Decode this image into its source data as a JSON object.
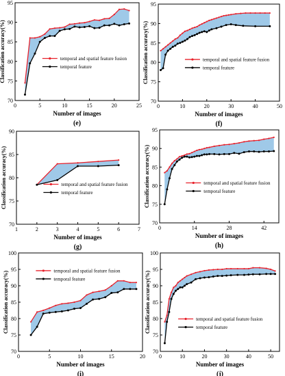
{
  "figure": {
    "colors": {
      "fusion": "#e8202a",
      "temporal": "#000000",
      "fill": "#9fc9e8",
      "axis": "#000000"
    }
  },
  "chart_data": [
    {
      "type": "line",
      "panel_label": "(e)",
      "xlabel": "Number of images",
      "ylabel": "Classification accuracy(%)",
      "xlim": [
        0,
        25
      ],
      "ylim": [
        70,
        95
      ],
      "xticks": [
        0,
        5,
        10,
        15,
        20,
        25
      ],
      "yticks": [
        70,
        75,
        80,
        85,
        90,
        95
      ],
      "legend": "center-right",
      "series": [
        {
          "name": "temporal and spatial feature fusion",
          "x": [
            2,
            3,
            4,
            5,
            6,
            7,
            8,
            9,
            10,
            11,
            12,
            13,
            14,
            15,
            16,
            17,
            18,
            19,
            20,
            21,
            22,
            23
          ],
          "y": [
            74.5,
            86,
            86,
            86.3,
            87,
            88.3,
            88.5,
            88.6,
            88.8,
            89.5,
            89.6,
            89.8,
            89.9,
            90.2,
            90.6,
            90.5,
            90.9,
            91,
            92,
            93.3,
            93.4,
            93.0
          ]
        },
        {
          "name": "temporal feature",
          "x": [
            2,
            3,
            4,
            5,
            6,
            7,
            8,
            9,
            10,
            11,
            12,
            13,
            14,
            15,
            16,
            17,
            18,
            19,
            20,
            21,
            22,
            23
          ],
          "y": [
            71.5,
            79.5,
            82,
            85,
            86,
            86.5,
            86.5,
            87.8,
            88.2,
            88.3,
            88.9,
            88.7,
            88.8,
            89.0,
            88.5,
            88.6,
            89.2,
            89.2,
            89.6,
            89.2,
            89.5,
            89.7
          ]
        }
      ]
    },
    {
      "type": "line",
      "panel_label": "(f)",
      "xlabel": "Number of images",
      "ylabel": "Classification accuracy(%)",
      "xlim": [
        0,
        50
      ],
      "ylim": [
        70,
        95
      ],
      "xticks": [
        0,
        10,
        20,
        30,
        40,
        50
      ],
      "yticks": [
        70,
        75,
        80,
        85,
        90,
        95
      ],
      "legend": "center-right",
      "series": [
        {
          "name": "temporal and spatial feature fusion",
          "x": [
            1,
            2,
            3,
            4,
            5,
            6,
            7,
            8,
            9,
            10,
            11,
            12,
            13,
            14,
            15,
            16,
            17,
            18,
            19,
            20,
            21,
            22,
            23,
            24,
            25,
            26,
            27,
            28,
            29,
            30,
            32,
            34,
            36,
            38,
            40,
            42,
            44,
            46
          ],
          "y": [
            83,
            83.5,
            84,
            84.5,
            85,
            85.5,
            86,
            86.3,
            87,
            87.5,
            88,
            88.2,
            88.5,
            88.8,
            89,
            89.2,
            89.6,
            89.9,
            90.2,
            90.5,
            90.8,
            91,
            91.2,
            91.4,
            91.6,
            91.8,
            92,
            92.1,
            92.2,
            92.3,
            92.5,
            92.6,
            92.7,
            92.7,
            92.7,
            92.7,
            92.7,
            92.7
          ]
        },
        {
          "name": "temporal feature",
          "x": [
            1,
            2,
            3,
            4,
            5,
            6,
            7,
            8,
            9,
            10,
            11,
            12,
            13,
            14,
            15,
            16,
            17,
            18,
            19,
            20,
            21,
            22,
            24,
            26,
            28,
            30,
            32,
            35,
            40,
            46
          ],
          "y": [
            78,
            78.5,
            82,
            83,
            83.5,
            84,
            84.3,
            84.8,
            85,
            85.3,
            85.6,
            86,
            86.5,
            86.8,
            87,
            87.3,
            87.6,
            87.8,
            88,
            87.8,
            88.2,
            88.5,
            88.8,
            89.2,
            89.6,
            89.8,
            89.6,
            89.4,
            89.3,
            89.3
          ]
        }
      ]
    },
    {
      "type": "line",
      "panel_label": "(g)",
      "xlabel": "Number of images",
      "ylabel": "Classification accuracy(%)",
      "xlim": [
        1,
        7
      ],
      "ylim": [
        70,
        90
      ],
      "xticks": [
        1,
        2,
        3,
        4,
        5,
        6,
        7
      ],
      "yticks": [
        70,
        75,
        80,
        85,
        90
      ],
      "legend": "center-right",
      "series": [
        {
          "name": "temporal and spatial feature fusion",
          "x": [
            2,
            3,
            4,
            5,
            6
          ],
          "y": [
            78.5,
            83,
            83.2,
            83.5,
            83.8
          ]
        },
        {
          "name": "temporal feature",
          "x": [
            2,
            3,
            4,
            5,
            6
          ],
          "y": [
            78.5,
            79.5,
            82.5,
            82.5,
            82.7
          ]
        }
      ]
    },
    {
      "type": "line",
      "panel_label": "(h)",
      "xlabel": "Number of images",
      "ylabel": "Classification accuracy(%)",
      "xlim": [
        0,
        48
      ],
      "ylim": [
        70,
        95
      ],
      "xticks": [
        0,
        14,
        28,
        42
      ],
      "yticks": [
        70,
        75,
        80,
        85,
        90,
        95
      ],
      "legend": "center-right",
      "series": [
        {
          "name": "temporal and spatial feature fusion",
          "x": [
            2,
            3,
            4,
            5,
            6,
            7,
            8,
            9,
            10,
            11,
            12,
            13,
            14,
            15,
            16,
            17,
            18,
            19,
            20,
            22,
            24,
            26,
            28,
            30,
            32,
            34,
            36,
            38,
            40,
            42,
            44,
            46
          ],
          "y": [
            83.5,
            84,
            85,
            86,
            86.7,
            87.2,
            87.8,
            88,
            88.2,
            88.5,
            88.6,
            88.9,
            89.2,
            89.5,
            89.7,
            89.8,
            90,
            90.2,
            90.3,
            90.6,
            90.8,
            91,
            91.1,
            91.3,
            91.5,
            91.8,
            92,
            92.1,
            92.2,
            92.5,
            92.7,
            93.0
          ]
        },
        {
          "name": "temporal feature",
          "x": [
            2,
            3,
            4,
            5,
            6,
            7,
            8,
            9,
            10,
            11,
            12,
            13,
            14,
            15,
            16,
            17,
            18,
            19,
            20,
            22,
            24,
            26,
            28,
            30,
            32,
            34,
            36,
            38,
            40,
            42,
            44,
            46
          ],
          "y": [
            75,
            79,
            82,
            84.5,
            85.5,
            86.5,
            87,
            87.5,
            87.8,
            87.8,
            87.6,
            87.7,
            87.8,
            88,
            88,
            88.2,
            88.4,
            88.4,
            88.5,
            88.5,
            88.4,
            88.5,
            88.5,
            88.8,
            88.6,
            89,
            89.2,
            89.2,
            89.1,
            89.2,
            89.2,
            89.3
          ]
        }
      ]
    },
    {
      "type": "line",
      "panel_label": "(i)",
      "xlabel": "Number of images",
      "ylabel": "Classification accuracy(%)",
      "xlim": [
        0,
        20
      ],
      "ylim": [
        70,
        100
      ],
      "xticks": [
        0,
        5,
        10,
        15,
        20
      ],
      "yticks": [
        70,
        75,
        80,
        85,
        90,
        95,
        100
      ],
      "legend": "top-left",
      "series": [
        {
          "name": "temporal and spatial feature fusion",
          "x": [
            2,
            3,
            4,
            5,
            6,
            7,
            8,
            9,
            10,
            11,
            12,
            13,
            14,
            15,
            16,
            17,
            18,
            19
          ],
          "y": [
            79,
            82,
            82.5,
            83.2,
            84,
            84.5,
            84.7,
            85,
            85.5,
            87.2,
            88,
            88.3,
            88.7,
            90,
            91.5,
            91.5,
            91,
            91
          ]
        },
        {
          "name": "temporal feature",
          "x": [
            2,
            3,
            4,
            5,
            6,
            7,
            8,
            9,
            10,
            11,
            12,
            13,
            14,
            15,
            16,
            17,
            18,
            19
          ],
          "y": [
            75,
            77.5,
            81.5,
            81.8,
            82,
            82.2,
            82.5,
            83,
            83.2,
            84.5,
            85.8,
            86,
            86.5,
            87.8,
            88,
            89,
            89,
            89
          ]
        }
      ]
    },
    {
      "type": "line",
      "panel_label": "(j)",
      "xlabel": "Number of images",
      "ylabel": "Classification accuracy(%)",
      "xlim": [
        0,
        54
      ],
      "ylim": [
        70,
        100
      ],
      "xticks": [
        0,
        10,
        20,
        30,
        40,
        50
      ],
      "yticks": [
        70,
        75,
        80,
        85,
        90,
        95,
        100
      ],
      "legend": "bottom-center",
      "series": [
        {
          "name": "temporal and spatial feature fusion",
          "x": [
            2,
            3,
            4,
            5,
            6,
            7,
            8,
            9,
            10,
            11,
            12,
            14,
            16,
            18,
            20,
            22,
            24,
            26,
            28,
            30,
            32,
            35,
            38,
            40,
            42,
            45,
            48,
            50,
            52
          ],
          "y": [
            79,
            81,
            86,
            88,
            89.5,
            90,
            91,
            91.5,
            92,
            92.5,
            93,
            93.5,
            94,
            94.3,
            94.6,
            94.8,
            94.9,
            95,
            95,
            95.2,
            95.2,
            95.2,
            95.2,
            95.2,
            95.5,
            95.5,
            95.3,
            95,
            94.5
          ]
        },
        {
          "name": "temporal feature",
          "x": [
            2,
            3,
            4,
            5,
            6,
            7,
            8,
            9,
            10,
            11,
            12,
            14,
            16,
            18,
            20,
            22,
            24,
            26,
            28,
            30,
            32,
            35,
            38,
            40,
            42,
            45,
            48,
            50,
            52
          ],
          "y": [
            72.5,
            79,
            82,
            86,
            87.5,
            88.5,
            89,
            89.5,
            89.5,
            90,
            90.5,
            91,
            92,
            92.3,
            92.5,
            92.6,
            92.8,
            93,
            93,
            93.1,
            93.2,
            93.3,
            93.3,
            93.4,
            93.5,
            93.5,
            93.6,
            93.6,
            93.6
          ]
        }
      ]
    }
  ]
}
